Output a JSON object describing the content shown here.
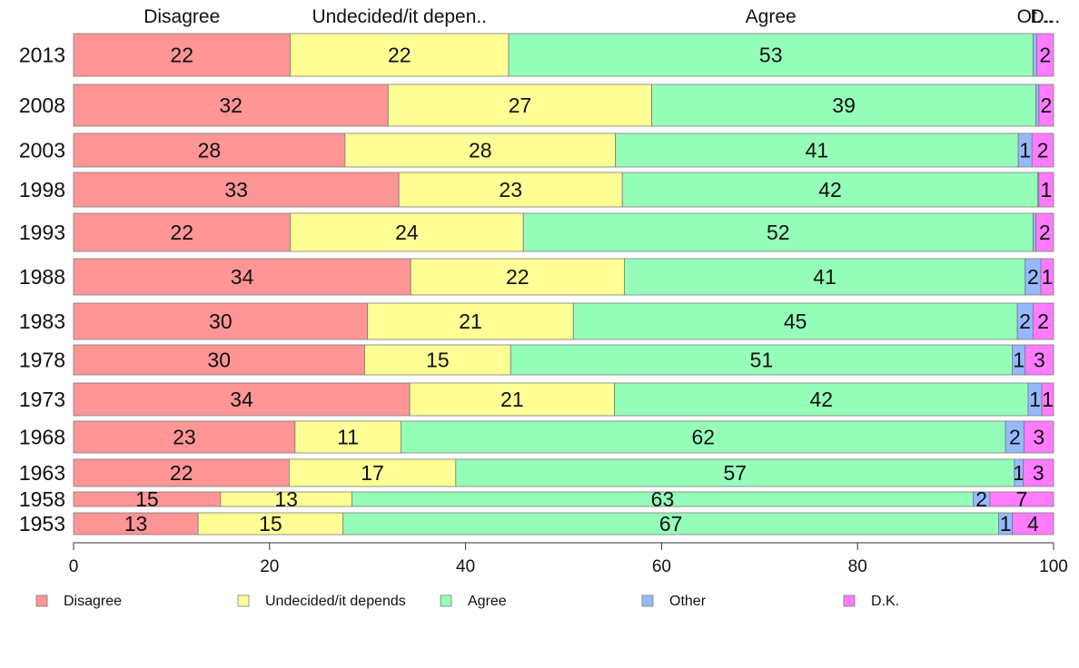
{
  "chart_data": {
    "type": "bar",
    "orientation": "horizontal",
    "stacked": true,
    "categories": [
      "2013",
      "2008",
      "2003",
      "1998",
      "1993",
      "1988",
      "1983",
      "1978",
      "1973",
      "1968",
      "1963",
      "1958",
      "1953"
    ],
    "top_labels": [
      "Disagree",
      "Undecided/it depen..",
      "Agree",
      "Ot...",
      "D..."
    ],
    "xlim": [
      0,
      100
    ],
    "xticks": [
      0,
      20,
      40,
      60,
      80,
      100
    ],
    "series": [
      {
        "name": "Disagree",
        "color": "#FF9595",
        "values": [
          22.1,
          32.1,
          27.7,
          33.2,
          22.1,
          34.4,
          30.0,
          29.7,
          34.3,
          22.6,
          22.0,
          15.0,
          12.7
        ],
        "labels": [
          "22",
          "32",
          "28",
          "33",
          "22",
          "34",
          "30",
          "30",
          "34",
          "23",
          "22",
          "15",
          "13"
        ]
      },
      {
        "name": "Undecided/it depends",
        "color": "#FFFF95",
        "values": [
          22.3,
          26.9,
          27.6,
          22.8,
          23.8,
          21.8,
          21.0,
          14.9,
          20.9,
          10.8,
          17.0,
          13.4,
          14.8
        ],
        "labels": [
          "22",
          "27",
          "28",
          "23",
          "24",
          "22",
          "21",
          "15",
          "21",
          "11",
          "17",
          "13",
          "15"
        ]
      },
      {
        "name": "Agree",
        "color": "#95FFB9",
        "values": [
          53.5,
          39.2,
          41.1,
          42.4,
          52.0,
          40.9,
          45.3,
          51.2,
          42.2,
          61.7,
          57.0,
          63.4,
          66.9
        ],
        "labels": [
          "53",
          "39",
          "41",
          "42",
          "52",
          "41",
          "45",
          "51",
          "42",
          "62",
          "57",
          "63",
          "67"
        ]
      },
      {
        "name": "Other",
        "color": "#95B9FF",
        "values": [
          0.4,
          0.3,
          1.4,
          0.1,
          0.3,
          1.6,
          1.6,
          1.3,
          1.4,
          1.9,
          0.9,
          1.7,
          1.4
        ],
        "labels": [
          "",
          "",
          "1",
          "",
          "",
          "2",
          "2",
          "1",
          "1",
          "2",
          "1",
          "2",
          "1"
        ]
      },
      {
        "name": "D.K.",
        "color": "#FF7BFF",
        "values": [
          1.7,
          1.5,
          2.2,
          1.5,
          1.8,
          1.3,
          2.1,
          2.9,
          1.2,
          3.0,
          3.1,
          6.5,
          4.2
        ],
        "labels": [
          "2",
          "2",
          "2",
          "1",
          "2",
          "1",
          "2",
          "3",
          "1",
          "3",
          "3",
          "7",
          "4"
        ]
      }
    ],
    "legend_position": "bottom",
    "grid": false
  }
}
